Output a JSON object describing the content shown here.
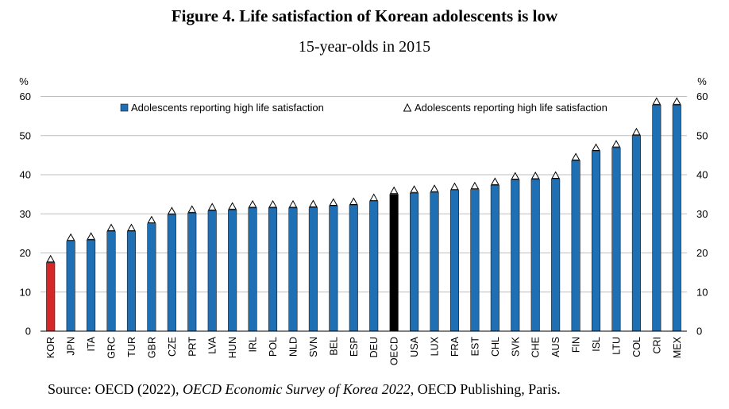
{
  "figure": {
    "title": "Figure 4. Life satisfaction of Korean adolescents is low",
    "subtitle": "15-year-olds in 2015",
    "source_prefix": "Source: OECD (2022), ",
    "source_italic": "OECD Economic Survey of Korea 2022",
    "source_suffix": ", OECD Publishing, Paris."
  },
  "chart_data": {
    "type": "bar",
    "ylabel_left": "%",
    "ylabel_right": "%",
    "ylim": [
      0,
      60
    ],
    "yticks": [
      0,
      10,
      20,
      30,
      40,
      50,
      60
    ],
    "grid": true,
    "legend_position": "top",
    "categories": [
      "KOR",
      "JPN",
      "ITA",
      "GRC",
      "TUR",
      "GBR",
      "CZE",
      "PRT",
      "LVA",
      "HUN",
      "IRL",
      "POL",
      "NLD",
      "SVN",
      "BEL",
      "ESP",
      "DEU",
      "OECD",
      "USA",
      "LUX",
      "FRA",
      "EST",
      "CHL",
      "SVK",
      "CHE",
      "AUS",
      "FIN",
      "ISL",
      "LTU",
      "COL",
      "CRI",
      "MEX"
    ],
    "series": [
      {
        "name": "Adolescents reporting high life satisfaction",
        "kind": "bar",
        "color": "#1f6fb5",
        "values": [
          17.5,
          23,
          23.3,
          25.5,
          25.5,
          27.5,
          29.8,
          30.2,
          30.8,
          31,
          31.5,
          31.5,
          31.5,
          31.6,
          32,
          32.2,
          33.2,
          35,
          35.3,
          35.5,
          36,
          36.2,
          37.3,
          38.7,
          38.8,
          38.9,
          43.6,
          46,
          46.9,
          50,
          57.8,
          57.8
        ]
      },
      {
        "name": "Adolescents reporting high life satisfaction",
        "kind": "triangle",
        "color": "#ffffff",
        "values": [
          18.5,
          24,
          24.3,
          26.5,
          26.5,
          28.5,
          30.8,
          31.2,
          31.8,
          32,
          32.5,
          32.5,
          32.5,
          32.6,
          33,
          33.2,
          34.2,
          36,
          36.3,
          36.5,
          37,
          37.2,
          38.3,
          39.7,
          39.8,
          39.9,
          44.6,
          47,
          47.9,
          51,
          58.8,
          58.8
        ]
      }
    ],
    "highlight_colors": {
      "KOR": "#d62728",
      "OECD": "#000000"
    }
  }
}
